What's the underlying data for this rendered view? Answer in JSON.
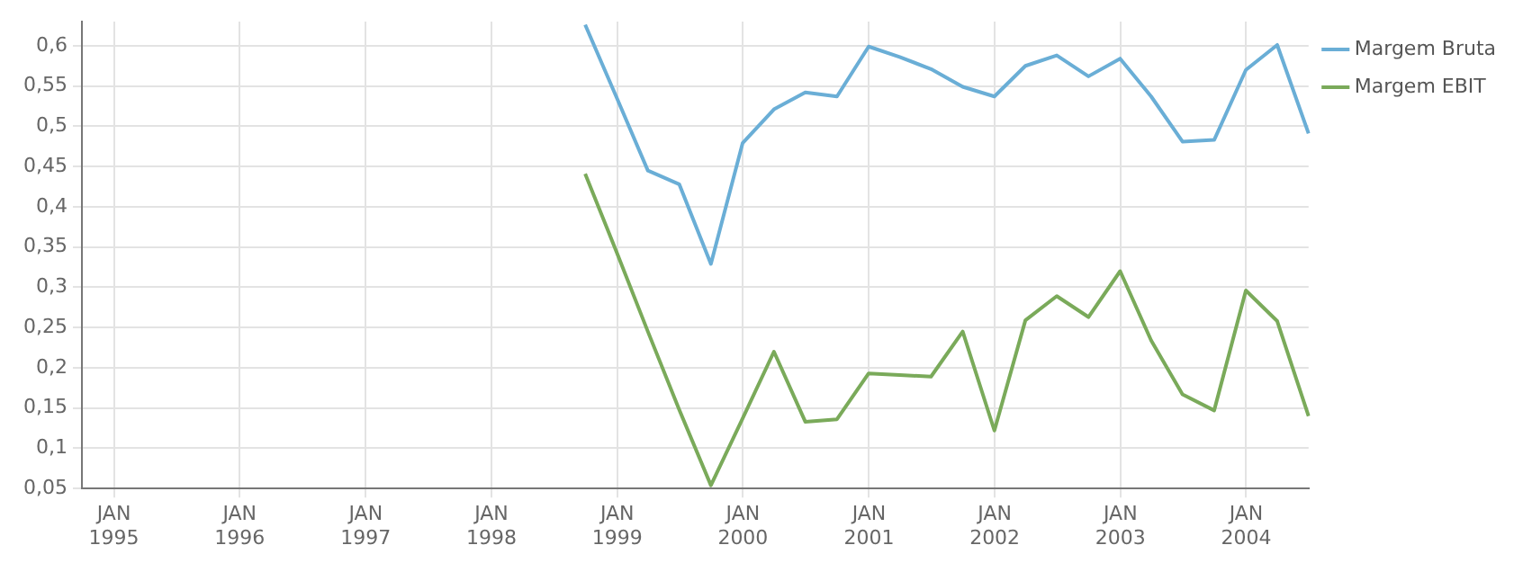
{
  "chart_data": {
    "type": "line",
    "x": [
      "1998-09-30",
      "1998-12-31",
      "1999-03-31",
      "1999-06-30",
      "1999-09-30",
      "1999-12-31",
      "2000-03-31",
      "2000-06-30",
      "2000-09-30",
      "2000-12-31",
      "2001-03-31",
      "2001-06-30",
      "2001-09-30",
      "2001-12-31",
      "2002-03-31",
      "2002-06-30",
      "2002-09-30",
      "2002-12-31",
      "2003-03-31",
      "2003-06-30",
      "2003-09-30",
      "2003-12-31",
      "2004-03-31",
      "2004-06-30"
    ],
    "series": [
      {
        "name": "Margem Bruta",
        "color": "#6aaed6",
        "values": [
          0.626,
          0.535,
          0.445,
          0.428,
          0.329,
          0.479,
          0.521,
          0.542,
          0.537,
          0.599,
          0.586,
          0.571,
          0.549,
          0.537,
          0.575,
          0.588,
          0.562,
          0.584,
          0.537,
          0.481,
          0.483,
          0.57,
          0.601,
          0.491
        ]
      },
      {
        "name": "Margem EBIT",
        "color": "#7aaa5a",
        "values": [
          0.441,
          0.343,
          0.245,
          0.148,
          0.054,
          0.137,
          0.22,
          0.133,
          0.136,
          0.193,
          0.191,
          0.189,
          0.245,
          0.122,
          0.259,
          0.289,
          0.263,
          0.32,
          0.234,
          0.167,
          0.147,
          0.296,
          0.258,
          0.14
        ]
      }
    ],
    "xlim": [
      "1994-09-30",
      "2004-06-30"
    ],
    "xticks": [
      {
        "value": "1995-01-01",
        "label": "JAN 1995"
      },
      {
        "value": "1996-01-01",
        "label": "JAN 1996"
      },
      {
        "value": "1997-01-01",
        "label": "JAN 1997"
      },
      {
        "value": "1998-01-01",
        "label": "JAN 1998"
      },
      {
        "value": "1999-01-01",
        "label": "JAN 1999"
      },
      {
        "value": "2000-01-01",
        "label": "JAN 2000"
      },
      {
        "value": "2001-01-01",
        "label": "JAN 2001"
      },
      {
        "value": "2002-01-01",
        "label": "JAN 2002"
      },
      {
        "value": "2003-01-01",
        "label": "JAN 2003"
      },
      {
        "value": "2004-01-01",
        "label": "JAN 2004"
      }
    ],
    "ylim": [
      0.05,
      0.63
    ],
    "yticks": [
      {
        "value": 0.05,
        "label": "0,05"
      },
      {
        "value": 0.1,
        "label": "0,1"
      },
      {
        "value": 0.15,
        "label": "0,15"
      },
      {
        "value": 0.2,
        "label": "0,2"
      },
      {
        "value": 0.25,
        "label": "0,25"
      },
      {
        "value": 0.3,
        "label": "0,3"
      },
      {
        "value": 0.35,
        "label": "0,35"
      },
      {
        "value": 0.4,
        "label": "0,4"
      },
      {
        "value": 0.45,
        "label": "0,45"
      },
      {
        "value": 0.5,
        "label": "0,5"
      },
      {
        "value": 0.55,
        "label": "0,55"
      },
      {
        "value": 0.6,
        "label": "0,6"
      }
    ],
    "grid": true,
    "legend": "top right",
    "marker": "none",
    "line_style": "solid"
  }
}
